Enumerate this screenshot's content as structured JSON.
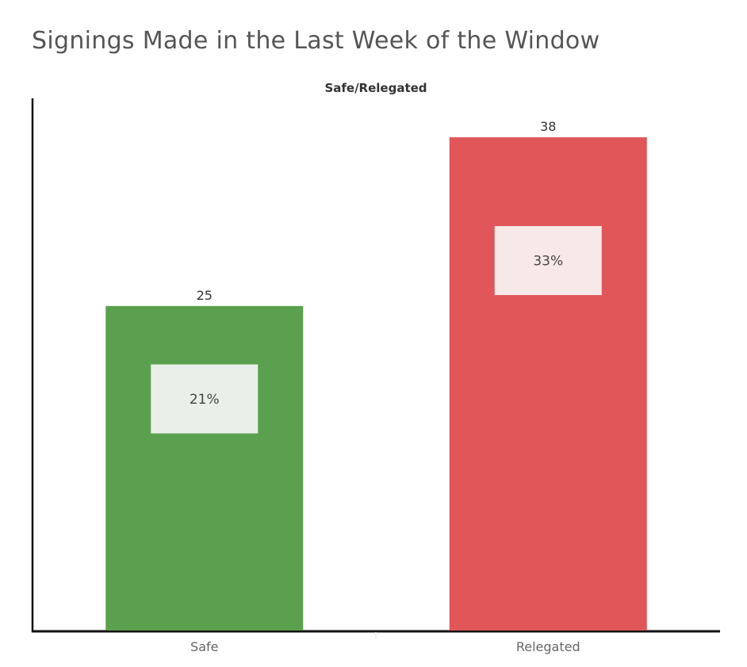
{
  "chart_data": {
    "type": "bar",
    "title": "Signings Made in the Last Week of the Window",
    "column_header": "Safe/Relegated",
    "categories": [
      "Safe",
      "Relegated"
    ],
    "values": [
      25,
      38
    ],
    "percent_labels": [
      "21%",
      "33%"
    ],
    "colors": [
      "#5ba04e",
      "#e05659"
    ],
    "label_box_colors": [
      "#eaf0e9",
      "#f8e9e9"
    ],
    "ylim": [
      0,
      41
    ],
    "grid": false,
    "legend": "none"
  }
}
